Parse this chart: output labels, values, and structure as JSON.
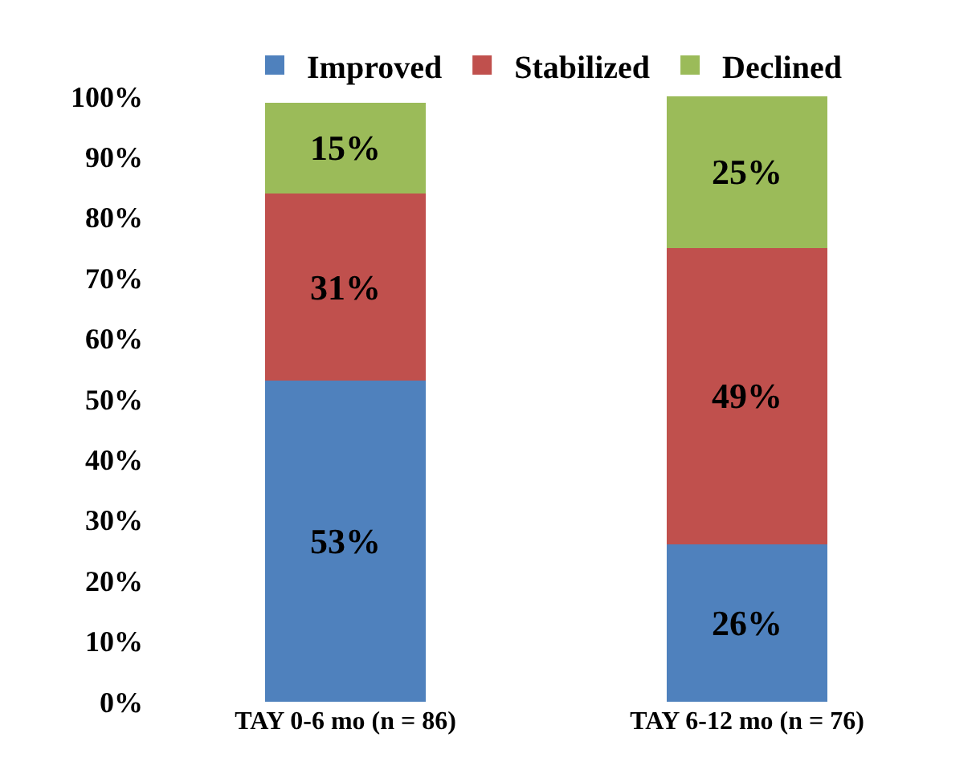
{
  "chart_data": {
    "type": "bar",
    "stacked": true,
    "categories": [
      "TAY 0-6 mo (n = 86)",
      "TAY 6-12 mo (n = 76)"
    ],
    "series": [
      {
        "name": "Improved",
        "color": "#4f81bd",
        "values": [
          53,
          26
        ],
        "value_labels": [
          "53%",
          "26%"
        ]
      },
      {
        "name": "Stabilized",
        "color": "#c0504d",
        "values": [
          31,
          49
        ],
        "value_labels": [
          "31%",
          "49%"
        ]
      },
      {
        "name": "Declined",
        "color": "#9bbb59",
        "values": [
          15,
          25
        ],
        "value_labels": [
          "15%",
          "25%"
        ]
      }
    ],
    "ylim": [
      0,
      100
    ],
    "yticks": [
      {
        "value": 0,
        "label": "0%"
      },
      {
        "value": 10,
        "label": "10%"
      },
      {
        "value": 20,
        "label": "20%"
      },
      {
        "value": 30,
        "label": "30%"
      },
      {
        "value": 40,
        "label": "40%"
      },
      {
        "value": 50,
        "label": "50%"
      },
      {
        "value": 60,
        "label": "60%"
      },
      {
        "value": 70,
        "label": "70%"
      },
      {
        "value": 80,
        "label": "80%"
      },
      {
        "value": 90,
        "label": "90%"
      },
      {
        "value": 100,
        "label": "100%"
      }
    ],
    "legend": "top"
  }
}
